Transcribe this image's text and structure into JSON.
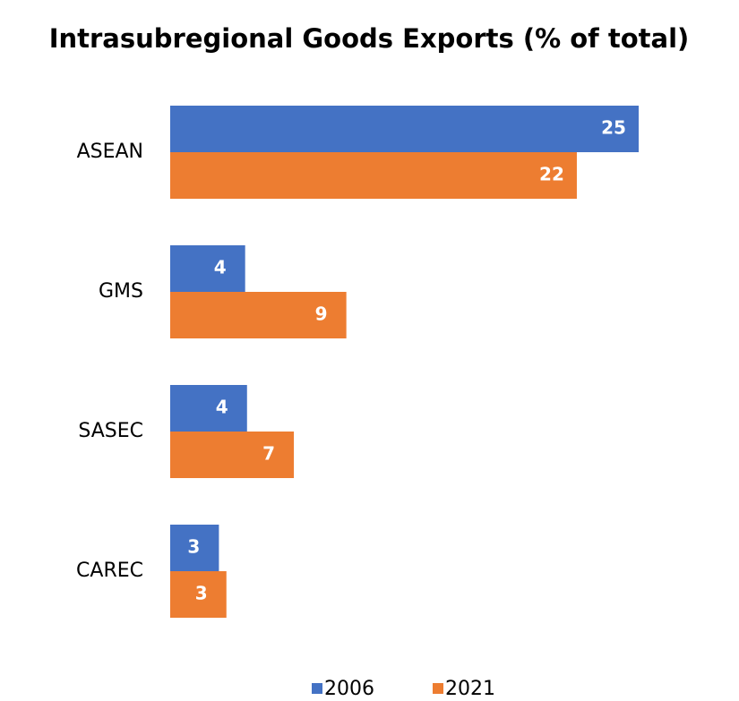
{
  "chart_data": {
    "type": "bar",
    "orientation": "horizontal",
    "title": "Intrasubregional Goods Exports (% of total)",
    "categories": [
      "ASEAN",
      "GMS",
      "SASEC",
      "CAREC"
    ],
    "series": [
      {
        "name": "2006",
        "color": "#4472c4",
        "values": [
          25.0,
          4.0,
          4.1,
          2.6
        ],
        "value_labels": [
          "25",
          "4",
          "4",
          "3"
        ]
      },
      {
        "name": "2021",
        "color": "#ed7d31",
        "values": [
          21.7,
          9.4,
          6.6,
          3.0
        ],
        "value_labels": [
          "22",
          "9",
          "7",
          "3"
        ]
      }
    ],
    "xlim": [
      0,
      25
    ],
    "legend": "bottom"
  }
}
